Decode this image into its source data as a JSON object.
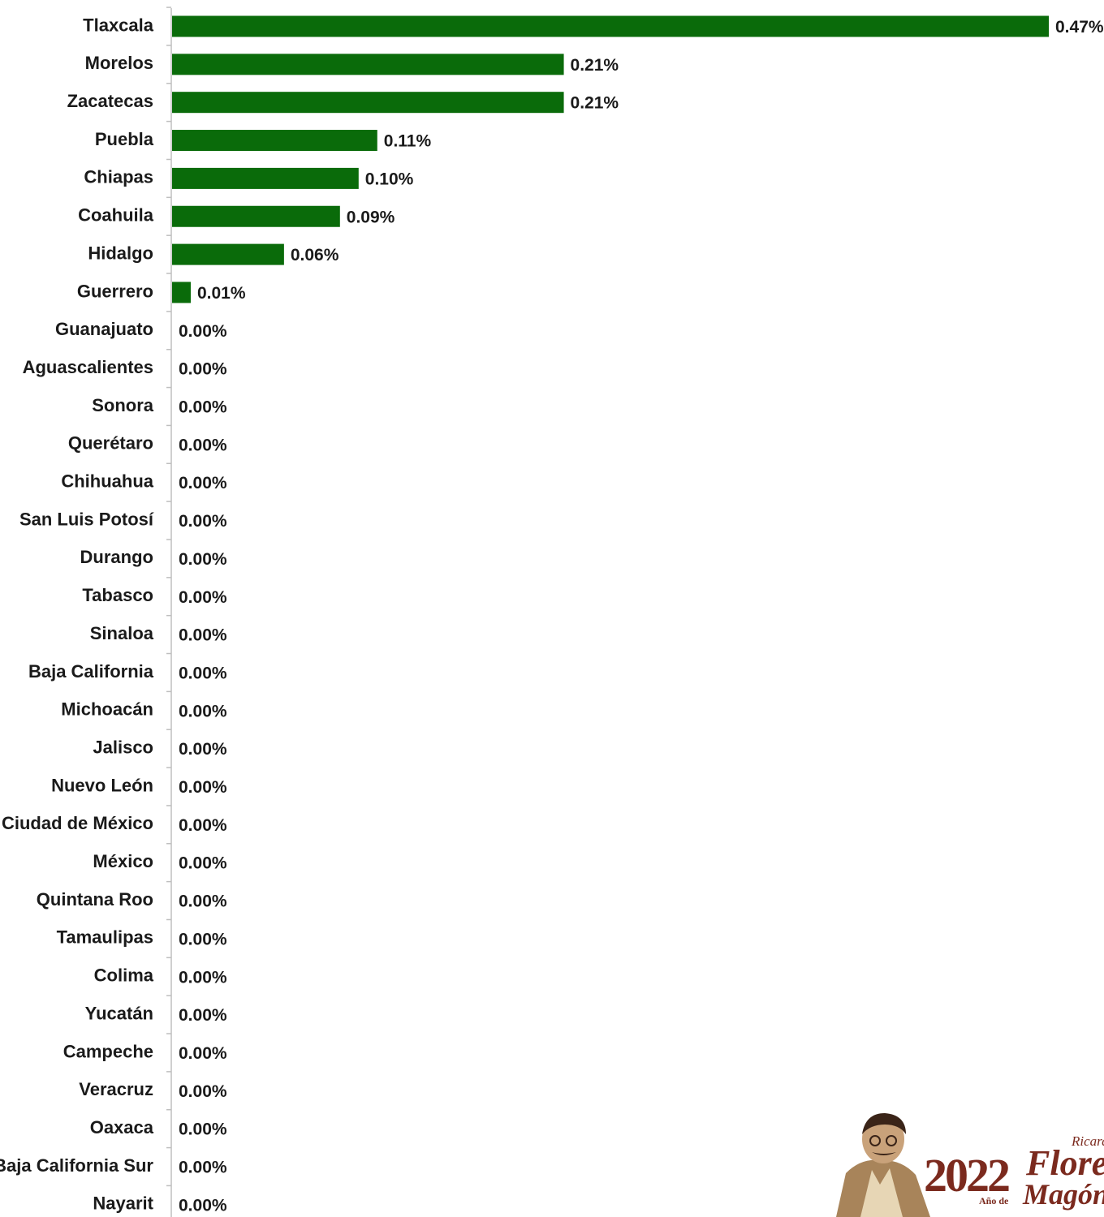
{
  "chart_data": {
    "type": "bar",
    "orientation": "horizontal",
    "title": "",
    "xlabel": "",
    "ylabel": "",
    "categories": [
      "Tlaxcala",
      "Morelos",
      "Zacatecas",
      "Puebla",
      "Chiapas",
      "Coahuila",
      "Hidalgo",
      "Guerrero",
      "Guanajuato",
      "Aguascalientes",
      "Sonora",
      "Querétaro",
      "Chihuahua",
      "San Luis Potosí",
      "Durango",
      "Tabasco",
      "Sinaloa",
      "Baja California",
      "Michoacán",
      "Jalisco",
      "Nuevo León",
      "Ciudad de México",
      "México",
      "Quintana Roo",
      "Tamaulipas",
      "Colima",
      "Yucatán",
      "Campeche",
      "Veracruz",
      "Oaxaca",
      "Baja California Sur",
      "Nayarit"
    ],
    "values": [
      0.47,
      0.21,
      0.21,
      0.11,
      0.1,
      0.09,
      0.06,
      0.01,
      0,
      0,
      0,
      0,
      0,
      0,
      0,
      0,
      0,
      0,
      0,
      0,
      0,
      0,
      0,
      0,
      0,
      0,
      0,
      0,
      0,
      0,
      0,
      0
    ],
    "value_labels": [
      "0.47%",
      "0.21%",
      "0.21%",
      "0.11%",
      "0.10%",
      "0.09%",
      "0.06%",
      "0.01%",
      "0.00%",
      "0.00%",
      "0.00%",
      "0.00%",
      "0.00%",
      "0.00%",
      "0.00%",
      "0.00%",
      "0.00%",
      "0.00%",
      "0.00%",
      "0.00%",
      "0.00%",
      "0.00%",
      "0.00%",
      "0.00%",
      "0.00%",
      "0.00%",
      "0.00%",
      "0.00%",
      "0.00%",
      "0.00%",
      "0.00%",
      "0.00%"
    ],
    "xlim": [
      0,
      0.47
    ],
    "grid": false,
    "legend": "none",
    "bar_color": "#0a6b0a",
    "axis_color": "#bfbfbf"
  },
  "logo": {
    "year": "2022",
    "pre_name": "Ricardo",
    "surname_1": "Flores",
    "surname_2": "Magón",
    "prefix": "Año de",
    "color": "#7b2a1e"
  }
}
